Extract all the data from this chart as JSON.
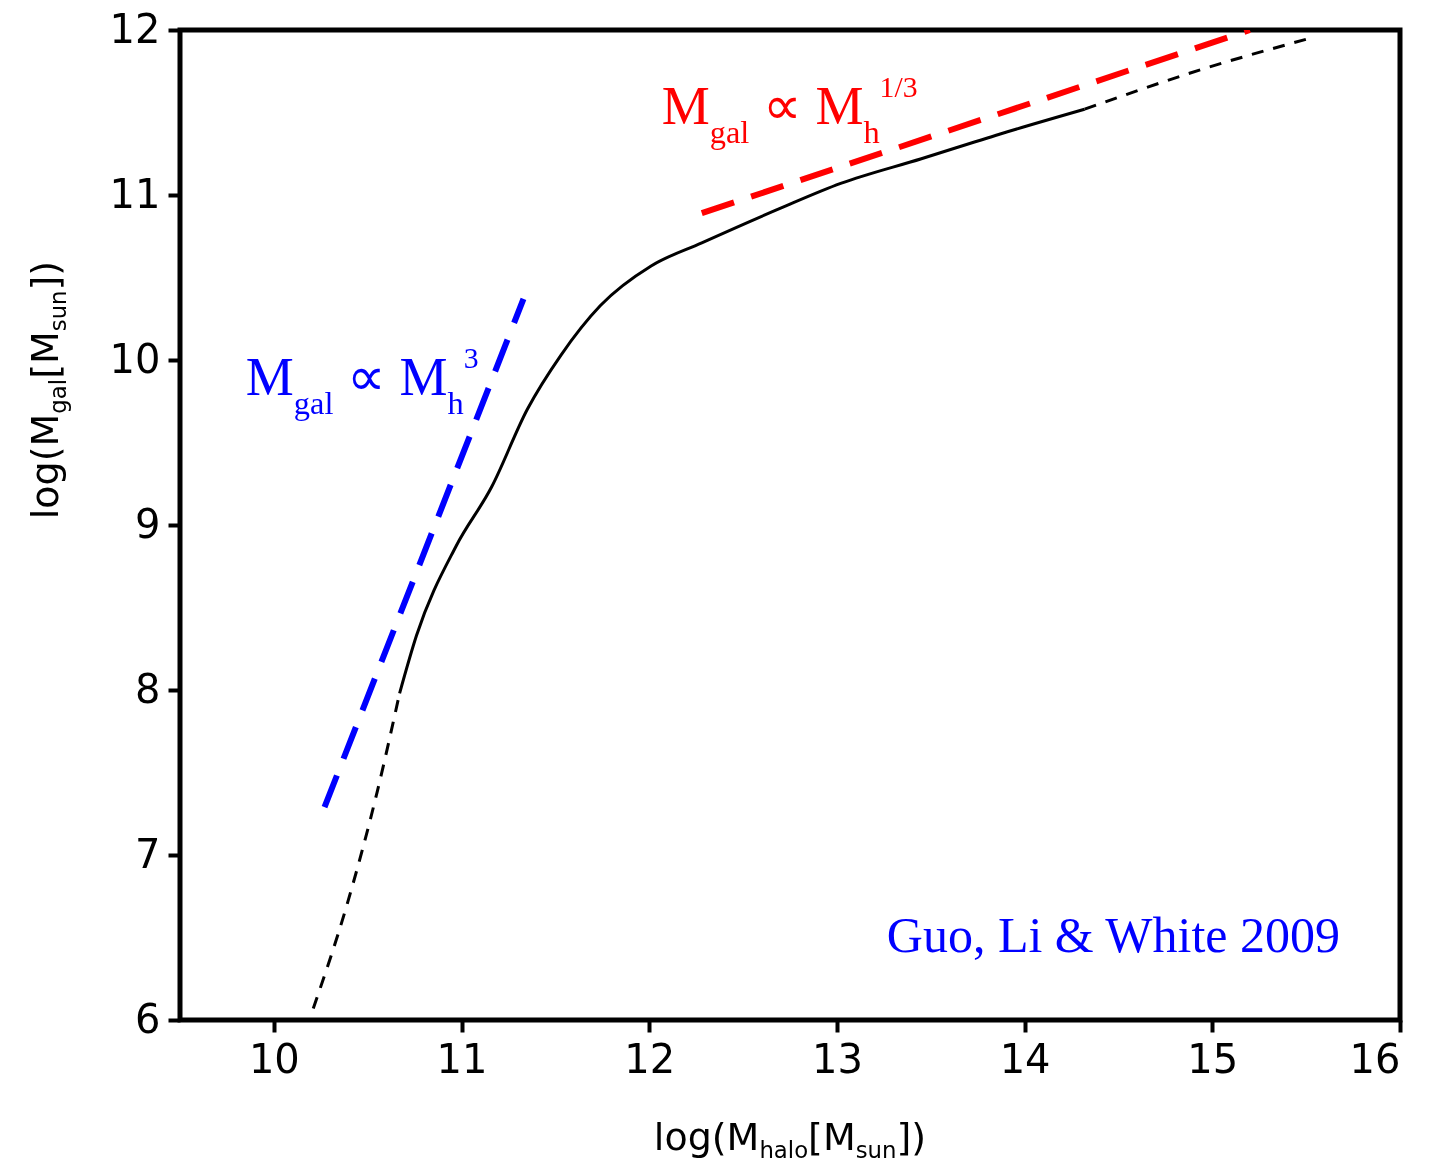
{
  "chart_data": {
    "type": "line",
    "xlabel": "log(M$_{halo}$[M$_{sun}$])",
    "ylabel": "log(M$_{gal}$[M$_{sun}$])",
    "xlim": [
      9.5,
      16
    ],
    "ylim": [
      6,
      12
    ],
    "xticks": [
      10,
      11,
      12,
      13,
      14,
      15,
      16
    ],
    "yticks": [
      6,
      7,
      8,
      9,
      10,
      11,
      12
    ],
    "series": [
      {
        "color": "#000000",
        "line_style": "dashed",
        "x": [
          10.21,
          10.39,
          10.55,
          10.67
        ],
        "values": [
          6.07,
          6.7,
          7.38,
          7.98
        ]
      },
      {
        "color": "#000000",
        "line_style": "solid",
        "x": [
          10.67,
          10.76,
          10.97,
          11.16,
          11.35,
          11.53,
          11.74,
          12.01,
          12.28,
          12.7,
          13.02,
          13.45,
          13.87,
          14.32
        ],
        "values": [
          7.98,
          8.33,
          8.87,
          9.23,
          9.7,
          10.03,
          10.33,
          10.57,
          10.71,
          10.92,
          11.07,
          11.22,
          11.37,
          11.52
        ]
      },
      {
        "color": "#000000",
        "line_style": "dashed",
        "x": [
          14.32,
          14.94,
          15.52
        ],
        "values": [
          11.52,
          11.76,
          11.95
        ]
      },
      {
        "name": "M$_{gal}$ ∝ M$_{h}$$^{3}$",
        "color": "#0000ff",
        "line_style": "dashed",
        "x": [
          10.27,
          11.33
        ],
        "values": [
          7.29,
          10.37
        ]
      },
      {
        "name": "M$_{gal}$ ∝ M$_{h}$$^{1/3}$",
        "color": "#ff0000",
        "line_style": "dashed",
        "x": [
          12.28,
          15.2
        ],
        "values": [
          10.89,
          12.0
        ]
      }
    ],
    "annotations": [
      "Guo, Li & White 2009"
    ]
  }
}
